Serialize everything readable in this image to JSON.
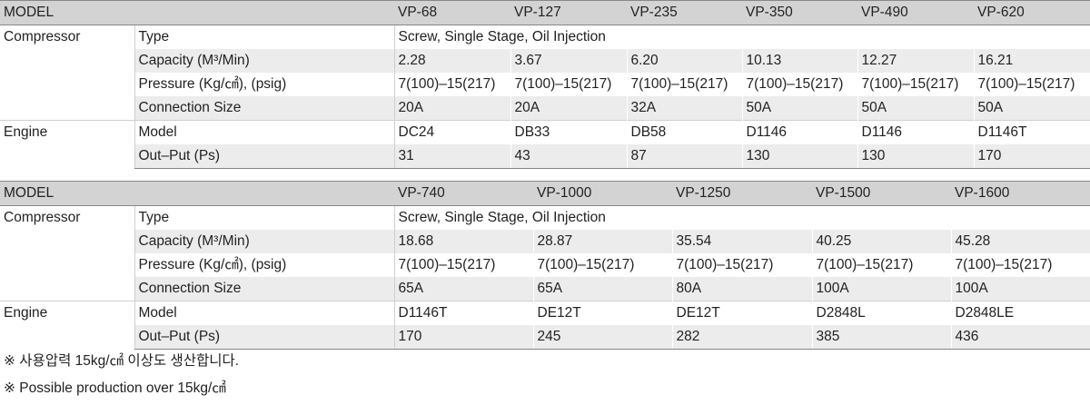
{
  "table1": {
    "header_label": "MODEL",
    "models": [
      "VP-68",
      "VP-127",
      "VP-235",
      "VP-350",
      "VP-490",
      "VP-620"
    ],
    "compressor_label": "Compressor",
    "engine_label": "Engine",
    "type_label": "Type",
    "type_value": "Screw, Single Stage, Oil Injection",
    "capacity_label": "Capacity (M³/Min)",
    "capacity": [
      "2.28",
      "3.67",
      "6.20",
      "10.13",
      "12.27",
      "16.21"
    ],
    "pressure_label": "Pressure (Kg/㎠), (psig)",
    "pressure": [
      "7(100)–15(217)",
      "7(100)–15(217)",
      "7(100)–15(217)",
      "7(100)–15(217)",
      "7(100)–15(217)",
      "7(100)–15(217)"
    ],
    "connection_label": "Connection Size",
    "connection": [
      "20A",
      "20A",
      "32A",
      "50A",
      "50A",
      "50A"
    ],
    "model_label": "Model",
    "engine_model": [
      "DC24",
      "DB33",
      "DB58",
      "D1146",
      "D1146",
      "D1146T"
    ],
    "output_label": "Out–Put (Ps)",
    "output": [
      "31",
      "43",
      "87",
      "130",
      "130",
      "170"
    ]
  },
  "table2": {
    "header_label": "MODEL",
    "models": [
      "VP-740",
      "VP-1000",
      "VP-1250",
      "VP-1500",
      "VP-1600"
    ],
    "compressor_label": "Compressor",
    "engine_label": "Engine",
    "type_label": "Type",
    "type_value": "Screw, Single Stage, Oil Injection",
    "capacity_label": "Capacity (M³/Min)",
    "capacity": [
      "18.68",
      "28.87",
      "35.54",
      "40.25",
      "45.28"
    ],
    "pressure_label": "Pressure (Kg/㎠), (psig)",
    "pressure": [
      "7(100)–15(217)",
      "7(100)–15(217)",
      "7(100)–15(217)",
      "7(100)–15(217)",
      "7(100)–15(217)"
    ],
    "connection_label": "Connection Size",
    "connection": [
      "65A",
      "65A",
      "80A",
      "100A",
      "100A"
    ],
    "model_label": "Model",
    "engine_model": [
      "D1146T",
      "DE12T",
      "DE12T",
      "D2848L",
      "D2848LE"
    ],
    "output_label": "Out–Put (Ps)",
    "output": [
      "170",
      "245",
      "282",
      "385",
      "436"
    ]
  },
  "notes": [
    "※ 사용압력 15kg/㎠ 이상도 생산합니다.",
    "※ Possible production over 15kg/㎠"
  ]
}
